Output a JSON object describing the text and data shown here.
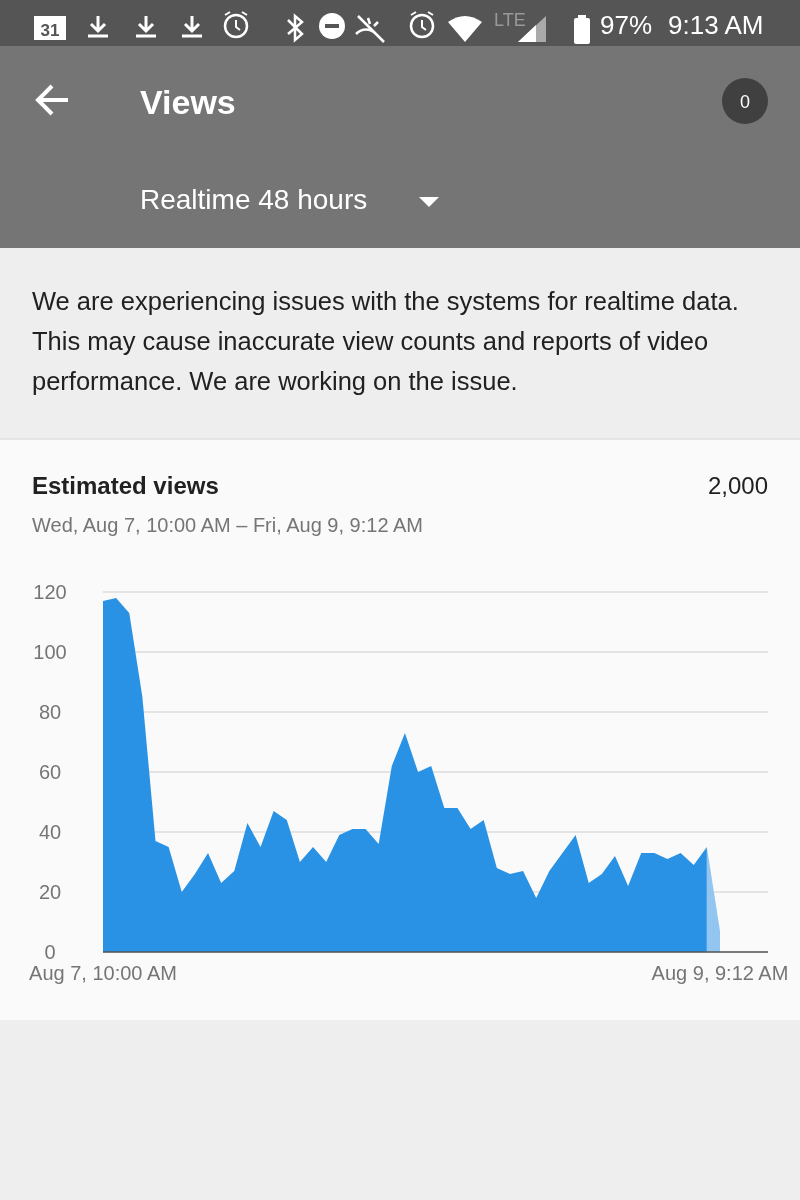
{
  "chart_data": {
    "type": "area",
    "title": "Estimated views",
    "subtitle": "Wed, Aug 7, 10:00 AM – Fri, Aug 9, 9:12 AM",
    "annotations": [
      "2,000",
      "Views",
      "Realtime 48 hours",
      "We are experiencing issues with the systems for realtime data. This may cause inaccurate view counts and reports of video performance. We are working on the issue.",
      "0",
      "97%",
      "9:13 AM",
      "LTE",
      "31"
    ],
    "categories": [
      "Aug 7, 10:00 AM",
      null,
      null,
      null,
      null,
      null,
      null,
      null,
      null,
      null,
      null,
      null,
      null,
      null,
      null,
      null,
      null,
      null,
      null,
      null,
      null,
      null,
      null,
      null,
      null,
      null,
      null,
      null,
      null,
      null,
      null,
      null,
      null,
      null,
      null,
      null,
      null,
      null,
      null,
      null,
      null,
      null,
      null,
      null,
      null,
      null,
      null,
      "Aug 9, 9:12 AM"
    ],
    "series": [
      {
        "color": "#2a92e4",
        "values": [
          117,
          118,
          113,
          85,
          37,
          35,
          20,
          26,
          33,
          23,
          27,
          43,
          35,
          47,
          44,
          30,
          35,
          30,
          39,
          41,
          41,
          36,
          62,
          73,
          60,
          62,
          48,
          48,
          41,
          44,
          28,
          26,
          27,
          18,
          27,
          33,
          39,
          23,
          26,
          32,
          22,
          33,
          33,
          31,
          33,
          29,
          35,
          null
        ]
      },
      {
        "color": "#92c5f0",
        "values": [
          null,
          null,
          null,
          null,
          null,
          null,
          null,
          null,
          null,
          null,
          null,
          null,
          null,
          null,
          null,
          null,
          null,
          null,
          null,
          null,
          null,
          null,
          null,
          null,
          null,
          null,
          null,
          null,
          null,
          null,
          null,
          null,
          null,
          null,
          null,
          null,
          null,
          null,
          null,
          null,
          null,
          null,
          null,
          null,
          null,
          null,
          35,
          7
        ]
      }
    ],
    "ylim": [
      0,
      120
    ],
    "yticks": [
      0,
      20,
      40,
      60,
      80,
      100,
      120
    ],
    "grid": "y"
  }
}
